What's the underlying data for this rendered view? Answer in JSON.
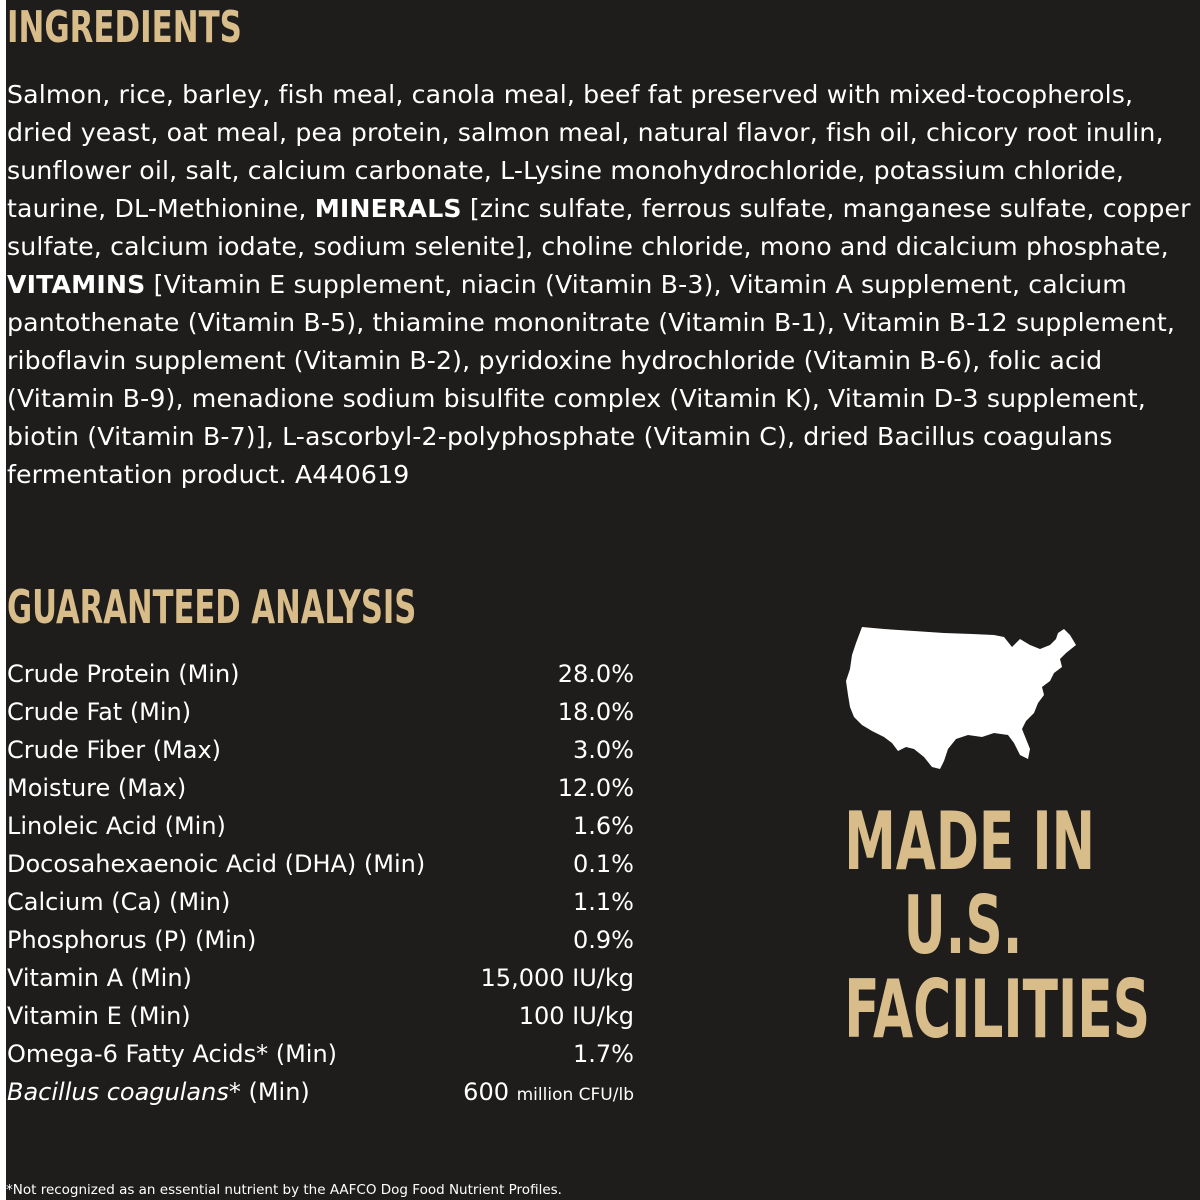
{
  "colors": {
    "background": "#1e1d1c",
    "accent_gold": "#d8bd8a",
    "text": "#ffffff"
  },
  "ingredients": {
    "heading": "INGREDIENTS",
    "segment_1": "Salmon, rice, barley, fish meal, canola meal, beef fat preserved with mixed-tocopherols, dried yeast, oat meal, pea protein, salmon meal, natural flavor, fish oil, chicory root inulin, sunflower oil, salt, calcium carbonate, L-Lysine monohydrochloride, potassium chloride, taurine, DL-Methionine, ",
    "minerals_label": "MINERALS",
    "segment_2": " [zinc sulfate, ferrous sulfate, manganese sulfate, copper sulfate, calcium iodate, sodium selenite], choline chloride, mono and dicalcium phosphate, ",
    "vitamins_label": "VITAMINS",
    "segment_3": " [Vitamin E supplement, niacin (Vitamin B-3), Vitamin A supplement, calcium pantothenate (Vitamin B-5), thiamine mononitrate (Vitamin B-1), Vitamin B-12 supplement, riboflavin supplement (Vitamin B-2), pyridoxine hydrochloride (Vitamin B-6), folic acid (Vitamin B-9), menadione sodium bisulfite complex (Vitamin K), Vitamin D-3 supplement, biotin (Vitamin B-7)], L-ascorbyl-2-polyphosphate (Vitamin C), dried Bacillus coagulans fermentation product. A440619"
  },
  "analysis": {
    "heading": "GUARANTEED ANALYSIS",
    "rows": [
      {
        "name": "Crude Protein (Min)",
        "value": "28.0%"
      },
      {
        "name": "Crude Fat (Min)",
        "value": "18.0%"
      },
      {
        "name": "Crude Fiber (Max)",
        "value": "3.0%"
      },
      {
        "name": "Moisture (Max)",
        "value": "12.0%"
      },
      {
        "name": "Linoleic Acid (Min)",
        "value": "1.6%"
      },
      {
        "name": "Docosahexaenoic Acid (DHA) (Min)",
        "value": "0.1%"
      },
      {
        "name": "Calcium (Ca) (Min)",
        "value": "1.1%"
      },
      {
        "name": "Phosphorus (P) (Min)",
        "value": "0.9%"
      },
      {
        "name": "Vitamin A (Min)",
        "value": "15,000 IU/kg"
      },
      {
        "name": "Vitamin E (Min)",
        "value": "100 IU/kg"
      },
      {
        "name": "Omega-6 Fatty Acids* (Min)",
        "value": "1.7%"
      }
    ],
    "last_row": {
      "name_italic": "Bacillus coagulans",
      "name_rest": "* (Min)",
      "value_number": "600",
      "value_unit": "million CFU/lb"
    },
    "footnote": "*Not recognized as an essential nutrient by the AAFCO Dog Food Nutrient Profiles."
  },
  "badge": {
    "map_icon": "usa-map-icon",
    "line_1": "MADE IN",
    "line_2": "U.S.",
    "line_3": "FACILITIES"
  }
}
